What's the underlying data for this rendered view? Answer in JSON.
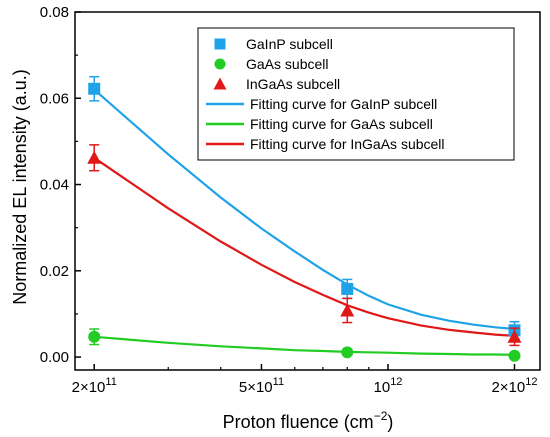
{
  "chart_data": {
    "type": "scatter",
    "xlabel": "Proton fluence (cm",
    "xlabel_sup": "−2",
    "xlabel_end": ")",
    "ylabel": "Normalized EL intensity (a.u.)",
    "xscale": "log",
    "xlim": [
      180000000000,
      2300000000000
    ],
    "ylim": [
      -0.003,
      0.08
    ],
    "yticks": [
      0.0,
      0.02,
      0.04,
      0.06,
      0.08
    ],
    "ytick_labels": [
      "0.00",
      "0.02",
      "0.04",
      "0.06",
      "0.08"
    ],
    "xticks": [
      {
        "value": 200000000000,
        "base": "2×10",
        "exp": "11"
      },
      {
        "value": 500000000000,
        "base": "5×10",
        "exp": "11"
      },
      {
        "value": 1000000000000,
        "base": "10",
        "exp": "12"
      },
      {
        "value": 2000000000000,
        "base": "2×10",
        "exp": "12"
      }
    ],
    "legend_position": "top-right",
    "series": [
      {
        "name": "GaInP subcell",
        "kind": "points",
        "marker": "square",
        "color": "#1fa3e8",
        "x": [
          200000000000,
          800000000000,
          2000000000000
        ],
        "y": [
          0.0622,
          0.0158,
          0.0062
        ],
        "err": [
          0.0028,
          0.0022,
          0.002
        ]
      },
      {
        "name": "GaAs subcell",
        "kind": "points",
        "marker": "circle",
        "color": "#22cc22",
        "x": [
          200000000000,
          800000000000,
          2000000000000
        ],
        "y": [
          0.0047,
          0.0011,
          0.0003
        ],
        "err": [
          0.0018,
          0.0,
          0.0
        ]
      },
      {
        "name": "InGaAs subcell",
        "kind": "points",
        "marker": "triangle",
        "color": "#e01818",
        "x": [
          200000000000,
          800000000000,
          2000000000000
        ],
        "y": [
          0.0462,
          0.0108,
          0.0047
        ],
        "err": [
          0.003,
          0.0028,
          0.002
        ]
      },
      {
        "name": "Fitting curve for GaInP subcell",
        "kind": "line",
        "color": "#1fa3e8",
        "x": [
          200000000000,
          300000000000,
          400000000000,
          500000000000,
          600000000000,
          700000000000,
          800000000000,
          900000000000,
          1000000000000,
          1200000000000,
          1400000000000,
          1600000000000,
          1800000000000,
          2000000000000
        ],
        "y": [
          0.062,
          0.047,
          0.037,
          0.0298,
          0.0245,
          0.0202,
          0.0168,
          0.0142,
          0.0122,
          0.0098,
          0.0084,
          0.0075,
          0.0069,
          0.0065
        ]
      },
      {
        "name": "Fitting curve for GaAs subcell",
        "kind": "line",
        "color": "#22cc22",
        "x": [
          200000000000,
          300000000000,
          400000000000,
          500000000000,
          600000000000,
          700000000000,
          800000000000,
          900000000000,
          1000000000000,
          1200000000000,
          1400000000000,
          1600000000000,
          1800000000000,
          2000000000000
        ],
        "y": [
          0.0047,
          0.0033,
          0.0025,
          0.002,
          0.0016,
          0.0014,
          0.0012,
          0.0011,
          0.001,
          0.0008,
          0.0007,
          0.0006,
          0.0006,
          0.0005
        ]
      },
      {
        "name": "Fitting curve for InGaAs subcell",
        "kind": "line",
        "color": "#e01818",
        "x": [
          200000000000,
          300000000000,
          400000000000,
          500000000000,
          600000000000,
          700000000000,
          800000000000,
          900000000000,
          1000000000000,
          1200000000000,
          1400000000000,
          1600000000000,
          1800000000000,
          2000000000000
        ],
        "y": [
          0.0462,
          0.0345,
          0.0268,
          0.0214,
          0.0174,
          0.0144,
          0.012,
          0.0103,
          0.009,
          0.0073,
          0.0063,
          0.0057,
          0.0052,
          0.0049
        ]
      }
    ]
  }
}
